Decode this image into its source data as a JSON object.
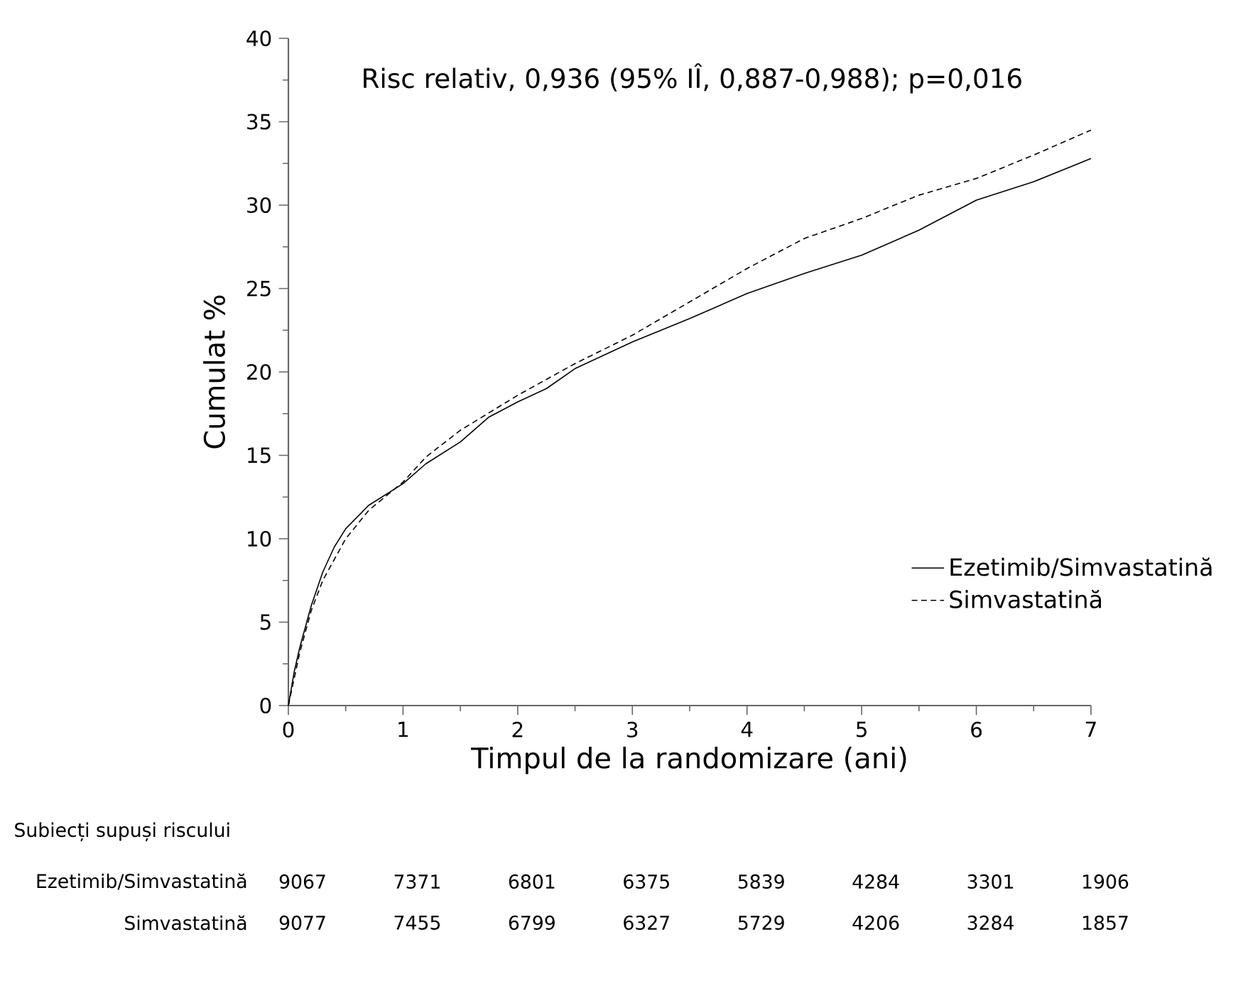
{
  "chart_data": {
    "type": "line",
    "xlabel": "Timpul de la randomizare (ani)",
    "ylabel": "Cumulat %",
    "xlim": [
      0,
      7
    ],
    "ylim": [
      0,
      40
    ],
    "xticks": [
      0,
      1,
      2,
      3,
      4,
      5,
      6,
      7
    ],
    "yticks": [
      0,
      5,
      10,
      15,
      20,
      25,
      30,
      35,
      40
    ],
    "grid": false,
    "legend": "bottom right",
    "series": [
      {
        "name": "Ezetimib/Simvastatină",
        "color": "#000000",
        "line_style": "solid",
        "x": [
          0,
          0.05,
          0.1,
          0.2,
          0.3,
          0.4,
          0.5,
          0.7,
          1.0,
          1.2,
          1.5,
          1.75,
          2,
          2.25,
          2.5,
          3,
          3.5,
          4,
          4.5,
          5,
          5.5,
          6,
          6.5,
          7
        ],
        "values": [
          0,
          2,
          3.5,
          6,
          8,
          9.5,
          10.6,
          12,
          13.3,
          14.5,
          15.8,
          17.3,
          18.2,
          19,
          20.2,
          21.8,
          23.2,
          24.7,
          25.9,
          27,
          28.5,
          30.3,
          31.4,
          32.8
        ]
      },
      {
        "name": "Simvastatină",
        "color": "#000000",
        "line_style": "dashed",
        "x": [
          0,
          0.1,
          0.2,
          0.3,
          0.5,
          0.7,
          1.0,
          1.2,
          1.5,
          2,
          2.5,
          3,
          3.5,
          4,
          4.5,
          5,
          5.5,
          6,
          6.5,
          7
        ],
        "values": [
          0,
          3.2,
          5.7,
          7.5,
          10,
          11.7,
          13.4,
          14.9,
          16.5,
          18.6,
          20.5,
          22.2,
          24.2,
          26.2,
          28,
          29.2,
          30.6,
          31.6,
          33,
          34.5
        ]
      }
    ],
    "annotations": [
      "Risc relativ, 0,936 (95% IÎ, 0,887-0,988); p=0,016",
      "Subiecți supuși riscului",
      "9067",
      "7371",
      "6801",
      "6375",
      "5839",
      "4284",
      "3301",
      "1906",
      "9077",
      "7455",
      "6799",
      "6327",
      "5729",
      "4206",
      "3284",
      "1857"
    ]
  }
}
